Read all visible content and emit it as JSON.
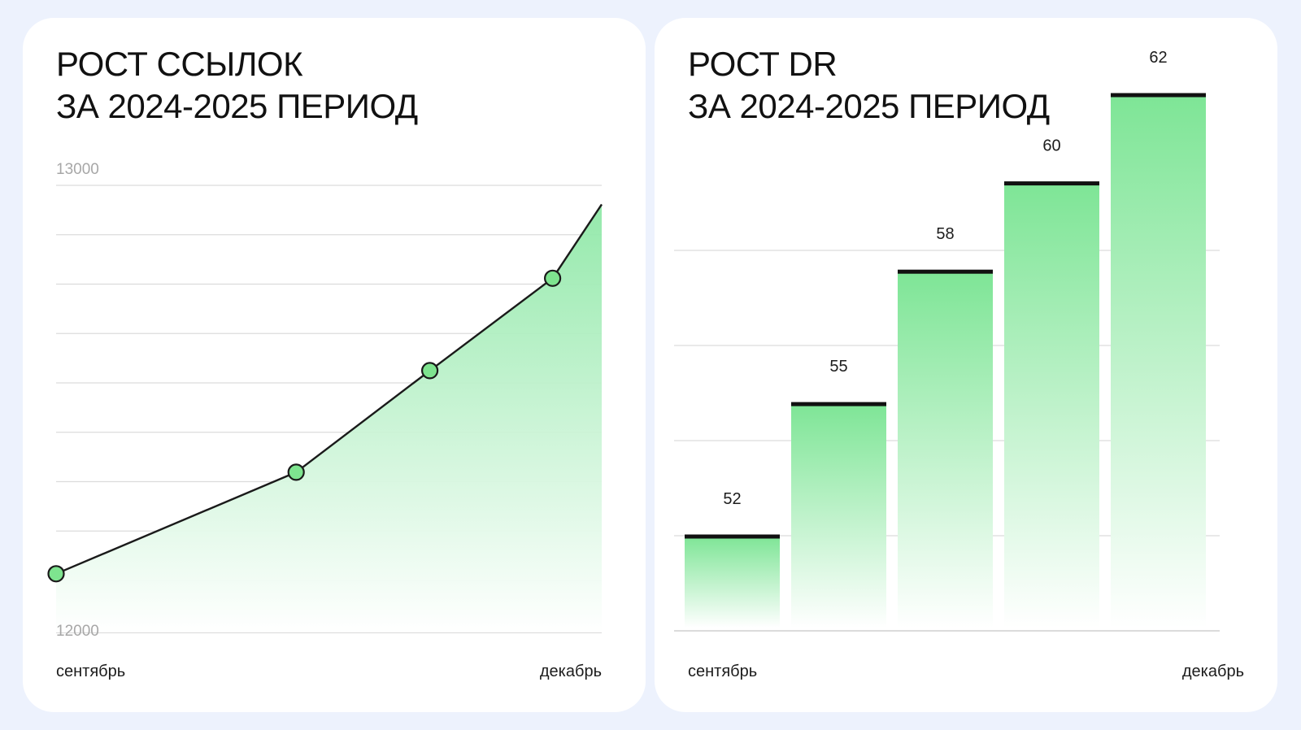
{
  "colors": {
    "background": "#edf2fd",
    "card": "#ffffff",
    "accent_green": "#6ee28b",
    "marker_fill": "#7ee48f",
    "line": "#1a1a1a",
    "grid": "#dcdcdc",
    "tick_text": "#a7a7a7"
  },
  "links_card": {
    "title_line1": "РОСТ ССЫЛОК",
    "title_line2": "ЗА 2024-2025 ПЕРИОД"
  },
  "dr_card": {
    "title_line1": "РОСТ DR",
    "title_line2": "ЗА 2024-2025 ПЕРИОД"
  },
  "chart_data": [
    {
      "type": "area",
      "title": "РОСТ ССЫЛОК ЗА 2024-2025 ПЕРИОД",
      "x_start_label": "сентябрь",
      "x_end_label": "декабрь",
      "y_tick_labels": [
        "13000",
        "12000"
      ],
      "ylim": [
        12000,
        13000
      ],
      "grid": true,
      "x": [
        0,
        0.44,
        0.685,
        0.91,
        1.0
      ],
      "values": [
        12120,
        12340,
        12560,
        12760,
        12920
      ],
      "markers": [
        true,
        true,
        true,
        true,
        false
      ]
    },
    {
      "type": "bar",
      "title": "РОСТ DR ЗА 2024-2025 ПЕРИОД",
      "x_start_label": "сентябрь",
      "x_end_label": "декабрь",
      "values": [
        52,
        55,
        58,
        60,
        62
      ],
      "value_labels": [
        "52",
        "55",
        "58",
        "60",
        "62"
      ],
      "grid": true
    }
  ]
}
